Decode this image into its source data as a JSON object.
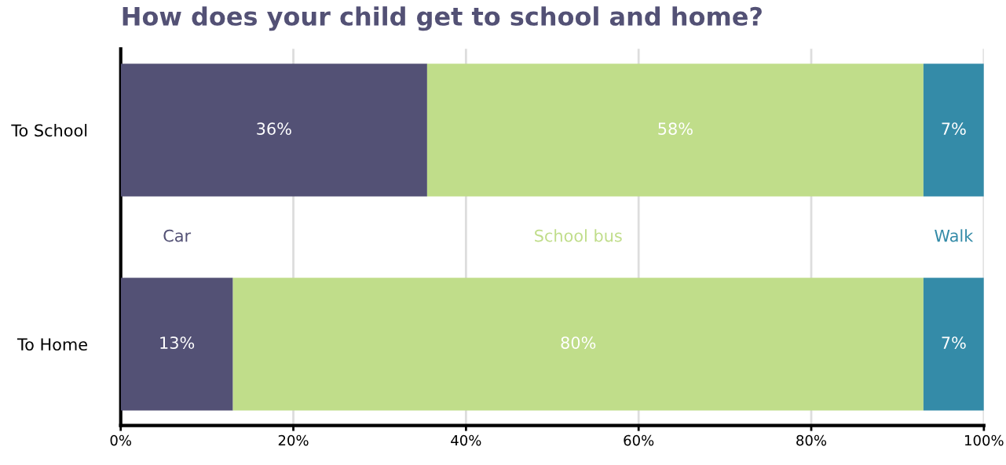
{
  "chart_data": {
    "type": "bar",
    "orientation": "horizontal",
    "stacked": true,
    "title": "How does your child get to school and home?",
    "categories": [
      "To School",
      "To Home"
    ],
    "series": [
      {
        "name": "Car",
        "color": "#535175",
        "values": [
          35.5,
          13
        ],
        "value_labels": [
          "36%",
          "13%"
        ]
      },
      {
        "name": "School bus",
        "color": "#c0dd8a",
        "values": [
          57.5,
          80
        ],
        "value_labels": [
          "58%",
          "80%"
        ]
      },
      {
        "name": "Walk",
        "color": "#348ba8",
        "values": [
          7,
          7
        ],
        "value_labels": [
          "7%",
          "7%"
        ]
      }
    ],
    "xlim": [
      0,
      100
    ],
    "xticks": [
      {
        "value": 0,
        "label": "0%"
      },
      {
        "value": 20,
        "label": "20%"
      },
      {
        "value": 40,
        "label": "40%"
      },
      {
        "value": 60,
        "label": "60%"
      },
      {
        "value": 80,
        "label": "80%"
      },
      {
        "value": 100,
        "label": "100%"
      }
    ],
    "grid": "x",
    "legend": false
  }
}
